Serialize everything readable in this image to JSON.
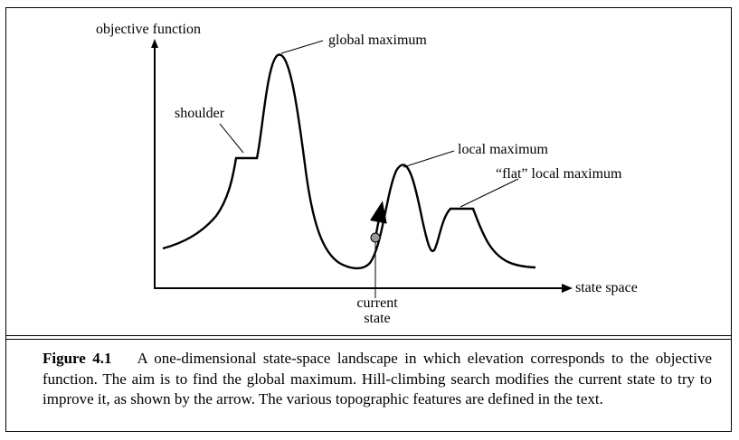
{
  "diagram": {
    "y_axis_label": "objective function",
    "x_axis_label": "state space",
    "annotations": {
      "global_maximum": "global maximum",
      "shoulder": "shoulder",
      "local_maximum": "local maximum",
      "flat_local_maximum": "“flat” local maximum",
      "current_state_line1": "current",
      "current_state_line2": "state"
    }
  },
  "caption": {
    "label": "Figure 4.1",
    "text": "A one-dimensional state-space landscape in which elevation corresponds to the objective function. The aim is to find the global maximum. Hill-climbing search modifies the current state to try to improve it, as shown by the arrow. The various topographic features are defined in the text."
  }
}
